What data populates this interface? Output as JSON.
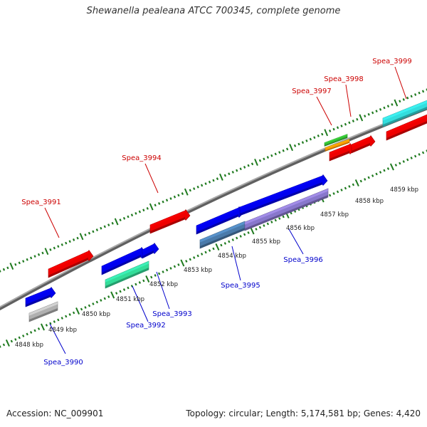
{
  "title": "Shewanella pealeana ATCC 700345, complete genome",
  "footer": {
    "accession": "Accession: NC_009901",
    "stats": "Topology: circular; Length: 5,174,581 bp; Genes: 4,420"
  },
  "colors": {
    "reverse_label": "#cc0000",
    "forward_label": "#0000cc",
    "tick": "#1f7a1f",
    "backbone": "#808080"
  },
  "scale_labels": [
    "4848 kbp",
    "4849 kbp",
    "4850 kbp",
    "4851 kbp",
    "4852 kbp",
    "4853 kbp",
    "4854 kbp",
    "4855 kbp",
    "4856 kbp",
    "4857 kbp",
    "4858 kbp",
    "4859 kbp"
  ],
  "genes": [
    {
      "name": "Spea_3990",
      "color": "#0000cc"
    },
    {
      "name": "Spea_3991",
      "color": "#cc0000"
    },
    {
      "name": "Spea_3992",
      "color": "#0000cc"
    },
    {
      "name": "Spea_3993",
      "color": "#0000cc"
    },
    {
      "name": "Spea_3994",
      "color": "#cc0000"
    },
    {
      "name": "Spea_3995",
      "color": "#0000cc"
    },
    {
      "name": "Spea_3996",
      "color": "#0000cc"
    },
    {
      "name": "Spea_3997",
      "color": "#cc0000"
    },
    {
      "name": "Spea_3998",
      "color": "#cc0000"
    },
    {
      "name": "Spea_3999",
      "color": "#cc0000"
    }
  ],
  "feature_colors": {
    "cds_forward": "#0000ee",
    "cds_reverse": "#ee0000",
    "rna_grey": "#b0b0b0",
    "rna_teal": "#33dd99",
    "rna_steel": "#4a7aaa",
    "rna_purple": "#8877cc",
    "rna_green": "#33bb33",
    "rna_orange": "#ff9900",
    "rna_cyan": "#33dddd"
  }
}
